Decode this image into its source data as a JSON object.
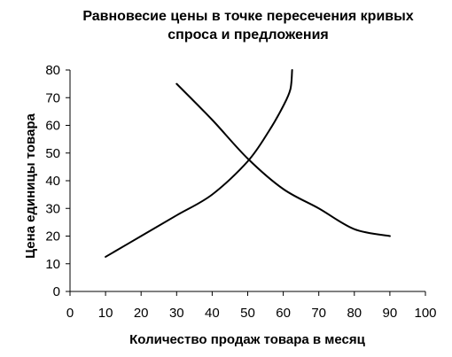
{
  "chart_data": {
    "type": "line",
    "title_lines": [
      "Равновесие цены в точке пересечения кривых",
      "спроса и предложения"
    ],
    "xlabel": "Количество продаж товара в месяц",
    "ylabel": "Цена единицы товара",
    "xlim": [
      0,
      100
    ],
    "ylim": [
      0,
      80
    ],
    "xticks": [
      0,
      10,
      20,
      30,
      40,
      50,
      60,
      70,
      80,
      90,
      100
    ],
    "yticks": [
      0,
      10,
      20,
      30,
      40,
      50,
      60,
      70,
      80
    ],
    "grid": false,
    "legend": "none",
    "series": [
      {
        "color": "#000000",
        "points": [
          [
            10,
            12.5
          ],
          [
            20,
            20
          ],
          [
            30,
            27.5
          ],
          [
            40,
            35
          ],
          [
            50,
            47
          ],
          [
            56,
            58
          ],
          [
            60,
            67
          ],
          [
            62,
            73
          ],
          [
            62.5,
            80
          ]
        ]
      },
      {
        "color": "#000000",
        "points": [
          [
            30,
            75
          ],
          [
            40,
            62
          ],
          [
            50,
            48
          ],
          [
            60,
            37
          ],
          [
            70,
            30
          ],
          [
            80,
            22.5
          ],
          [
            90,
            20
          ]
        ]
      }
    ]
  }
}
